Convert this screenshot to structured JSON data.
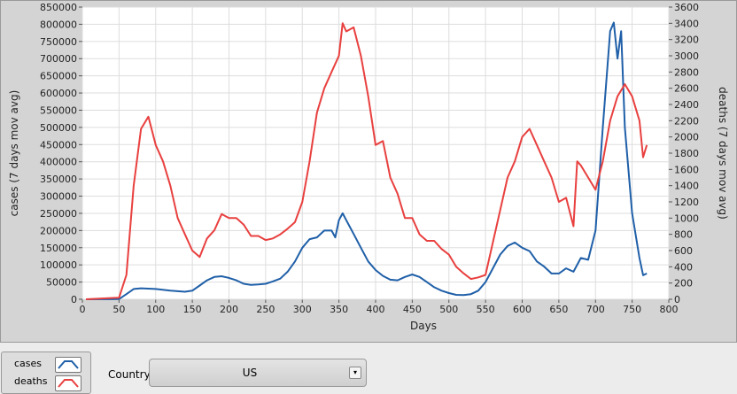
{
  "chart_data": {
    "type": "line",
    "xlabel": "Days",
    "ylabel": "cases  (7 days mov avg)",
    "y2label": "deaths  (7 days mov avg)",
    "xlim": [
      0,
      800
    ],
    "xticks": [
      0,
      50,
      100,
      150,
      200,
      250,
      300,
      350,
      400,
      450,
      500,
      550,
      600,
      650,
      700,
      750,
      800
    ],
    "ylim": [
      0,
      850000
    ],
    "yticks": [
      0,
      50000,
      100000,
      150000,
      200000,
      250000,
      300000,
      350000,
      400000,
      450000,
      500000,
      550000,
      600000,
      650000,
      700000,
      750000,
      800000,
      850000
    ],
    "y2lim": [
      0,
      3600
    ],
    "y2ticks": [
      0,
      200,
      400,
      600,
      800,
      1000,
      1200,
      1400,
      1600,
      1800,
      2000,
      2200,
      2400,
      2600,
      2800,
      3000,
      3200,
      3400,
      3600
    ],
    "grid": true,
    "series": [
      {
        "name": "cases",
        "color": "#1f5fa8",
        "x": [
          5,
          50,
          60,
          70,
          80,
          100,
          120,
          140,
          150,
          160,
          170,
          180,
          190,
          200,
          210,
          220,
          230,
          240,
          250,
          260,
          270,
          280,
          290,
          300,
          310,
          320,
          330,
          340,
          345,
          350,
          355,
          360,
          370,
          380,
          390,
          400,
          410,
          420,
          430,
          440,
          450,
          460,
          470,
          480,
          490,
          500,
          510,
          520,
          530,
          540,
          550,
          560,
          570,
          580,
          590,
          600,
          610,
          620,
          630,
          640,
          650,
          660,
          670,
          680,
          690,
          700,
          710,
          720,
          725,
          730,
          735,
          740,
          750,
          760,
          765,
          770
        ],
        "values": [
          0,
          500,
          15000,
          30000,
          32000,
          30000,
          25000,
          22000,
          25000,
          40000,
          55000,
          65000,
          67000,
          62000,
          55000,
          45000,
          42000,
          43000,
          45000,
          52000,
          60000,
          80000,
          110000,
          150000,
          175000,
          180000,
          200000,
          200000,
          180000,
          230000,
          250000,
          230000,
          190000,
          150000,
          110000,
          85000,
          68000,
          57000,
          55000,
          65000,
          72000,
          65000,
          50000,
          35000,
          25000,
          18000,
          13000,
          12000,
          15000,
          25000,
          50000,
          90000,
          130000,
          155000,
          165000,
          150000,
          140000,
          110000,
          95000,
          75000,
          75000,
          90000,
          80000,
          120000,
          115000,
          200000,
          500000,
          780000,
          805000,
          700000,
          780000,
          500000,
          250000,
          120000,
          70000,
          75000
        ]
      },
      {
        "name": "deaths",
        "color": "#e8403f",
        "axis": "y2",
        "x": [
          5,
          50,
          60,
          70,
          80,
          90,
          100,
          110,
          120,
          130,
          140,
          150,
          160,
          170,
          180,
          190,
          200,
          210,
          220,
          230,
          240,
          250,
          260,
          270,
          280,
          290,
          300,
          310,
          320,
          330,
          340,
          350,
          355,
          360,
          370,
          380,
          390,
          400,
          410,
          420,
          430,
          440,
          450,
          460,
          470,
          480,
          490,
          500,
          510,
          520,
          530,
          540,
          550,
          560,
          570,
          580,
          590,
          600,
          610,
          620,
          630,
          640,
          650,
          660,
          670,
          675,
          680,
          690,
          700,
          710,
          720,
          730,
          740,
          750,
          760,
          765,
          770
        ],
        "values": [
          0,
          20,
          300,
          1400,
          2100,
          2250,
          1900,
          1700,
          1400,
          1000,
          800,
          600,
          520,
          750,
          850,
          1050,
          1000,
          1000,
          920,
          780,
          780,
          730,
          750,
          800,
          870,
          950,
          1200,
          1700,
          2300,
          2600,
          2800,
          3000,
          3400,
          3300,
          3350,
          3000,
          2500,
          1900,
          1950,
          1500,
          1300,
          1000,
          1000,
          800,
          720,
          720,
          620,
          550,
          400,
          320,
          250,
          270,
          300,
          700,
          1100,
          1500,
          1700,
          2000,
          2100,
          1900,
          1700,
          1500,
          1200,
          1250,
          900,
          1700,
          1650,
          1500,
          1350,
          1700,
          2200,
          2500,
          2650,
          2500,
          2200,
          1750,
          1900
        ]
      }
    ]
  },
  "controls": {
    "country_label": "Country",
    "country_value": "US"
  }
}
